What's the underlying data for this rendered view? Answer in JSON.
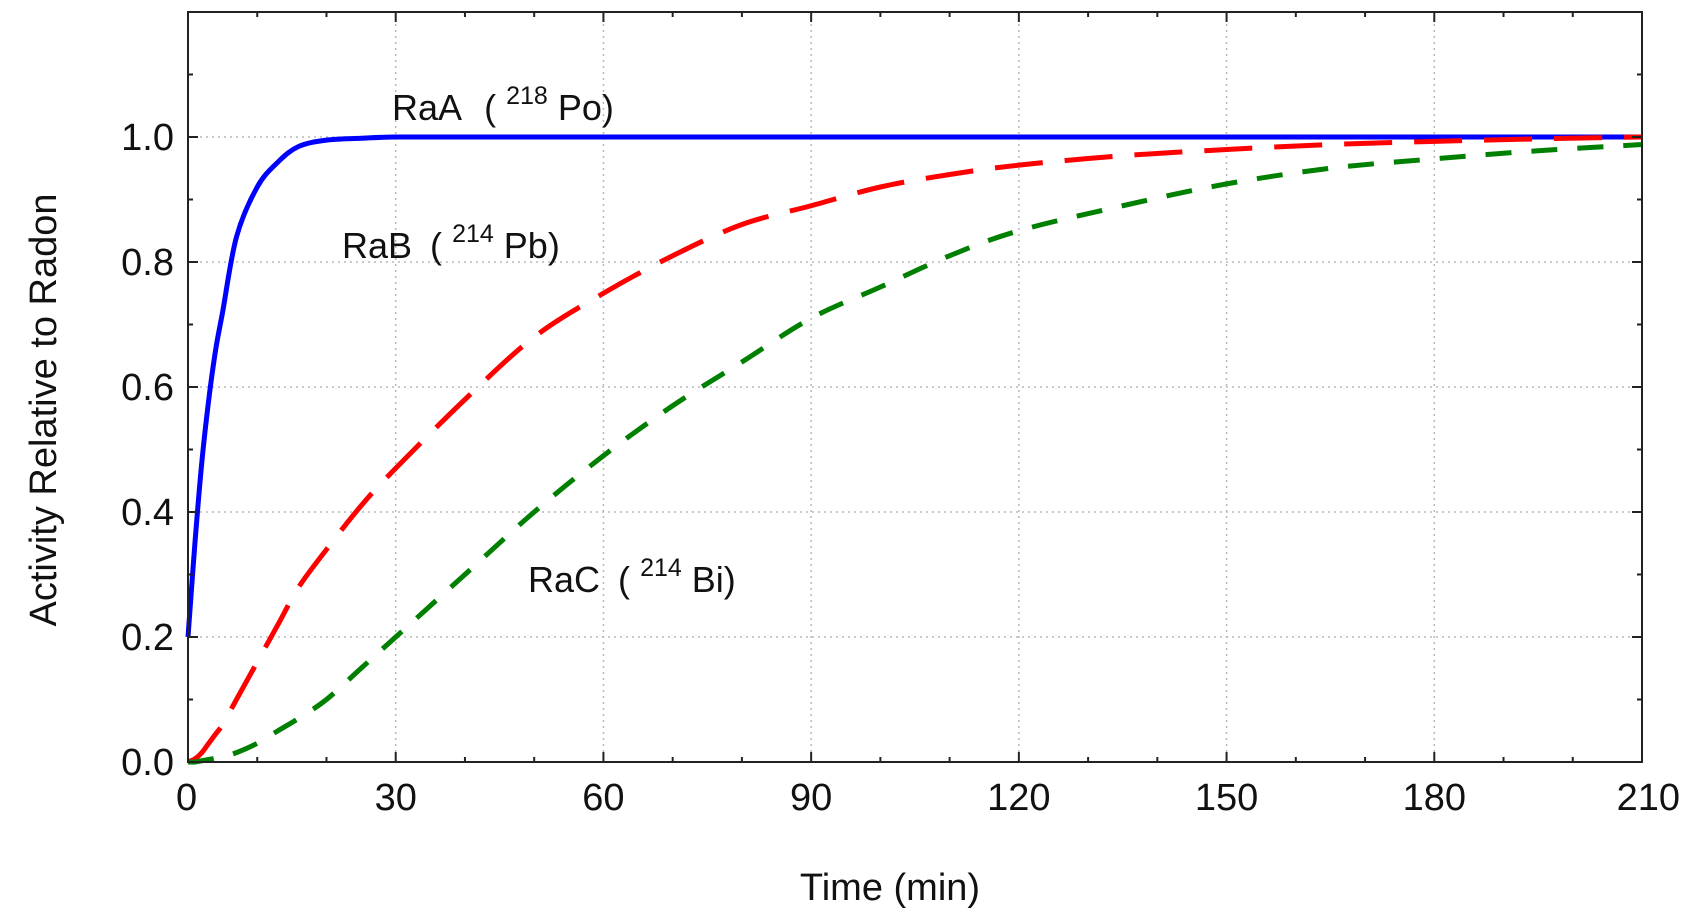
{
  "chart_data": {
    "type": "line",
    "title": "",
    "xlabel": "Time (min)",
    "ylabel": "Activity Relative to Radon",
    "xlim": [
      0,
      210
    ],
    "ylim": [
      0,
      1.2
    ],
    "xticks": [
      0,
      30,
      60,
      90,
      120,
      150,
      180,
      210
    ],
    "yticks": [
      0.0,
      0.2,
      0.4,
      0.6,
      0.8,
      1.0
    ],
    "ytick_labels": [
      "0.0",
      "0.2",
      "0.4",
      "0.6",
      "0.8",
      "1.0"
    ],
    "grid": true,
    "legend": "none",
    "x": [
      0,
      1,
      2,
      3,
      4,
      5,
      7,
      10,
      13,
      16,
      20,
      25,
      30,
      40,
      50,
      60,
      70,
      80,
      90,
      100,
      110,
      120,
      135,
      150,
      165,
      180,
      195,
      210
    ],
    "series": [
      {
        "label_name": "RaA",
        "label_open": "(",
        "label_sup": "218",
        "label_elem": "Po)",
        "color": "#0000ff",
        "style": "solid",
        "values": [
          0.2,
          0.35,
          0.48,
          0.58,
          0.66,
          0.72,
          0.84,
          0.92,
          0.96,
          0.985,
          0.995,
          0.998,
          1.0,
          1.0,
          1.0,
          1.0,
          1.0,
          1.0,
          1.0,
          1.0,
          1.0,
          1.0,
          1.0,
          1.0,
          1.0,
          1.0,
          1.0,
          1.0
        ]
      },
      {
        "label_name": "RaB",
        "label_open": "(",
        "label_sup": "214",
        "label_elem": "Pb)",
        "color": "#ff0000",
        "style": "dashed",
        "values": [
          0.0,
          0.005,
          0.015,
          0.03,
          0.045,
          0.06,
          0.1,
          0.16,
          0.22,
          0.28,
          0.34,
          0.41,
          0.47,
          0.58,
          0.68,
          0.75,
          0.81,
          0.86,
          0.89,
          0.92,
          0.94,
          0.955,
          0.97,
          0.98,
          0.988,
          0.993,
          0.997,
          1.0
        ]
      },
      {
        "label_name": "RaC",
        "label_open": "(",
        "label_sup": "214",
        "label_elem": "Bi)",
        "color": "#008000",
        "style": "dashed",
        "values": [
          0.0,
          0.0,
          0.002,
          0.004,
          0.006,
          0.008,
          0.015,
          0.03,
          0.05,
          0.07,
          0.1,
          0.15,
          0.2,
          0.3,
          0.4,
          0.49,
          0.57,
          0.64,
          0.71,
          0.76,
          0.81,
          0.85,
          0.89,
          0.925,
          0.95,
          0.965,
          0.978,
          0.988
        ]
      }
    ]
  }
}
